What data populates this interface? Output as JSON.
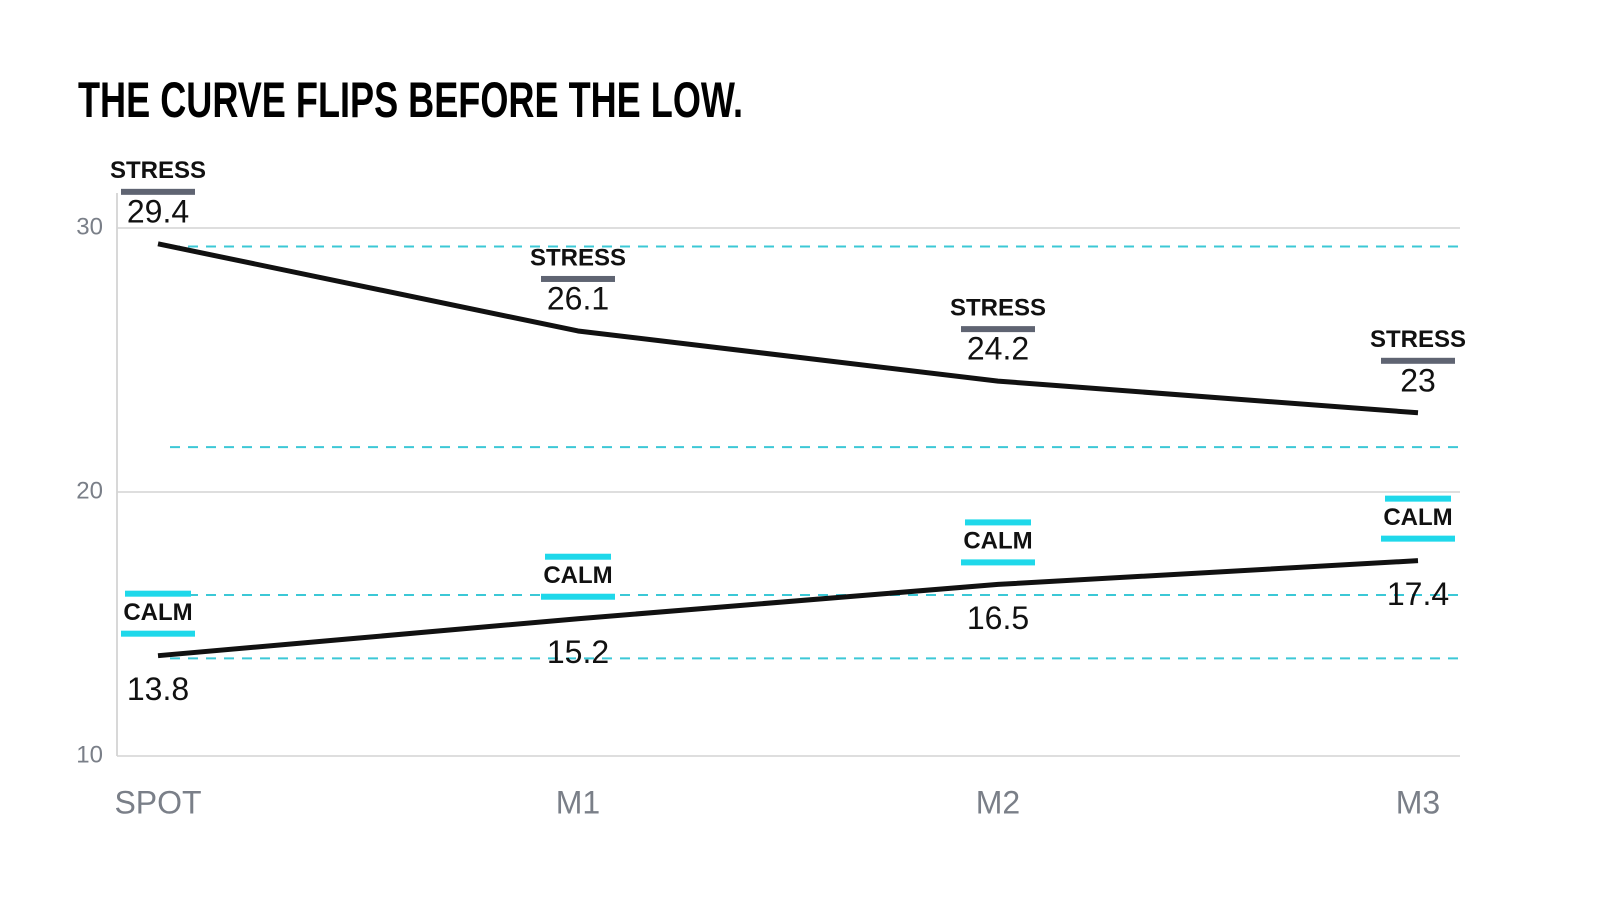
{
  "chart_data": {
    "type": "line",
    "title": "THE CURVE FLIPS BEFORE THE LOW.",
    "categories": [
      "SPOT",
      "M1",
      "M2",
      "M3"
    ],
    "series": [
      {
        "name": "STRESS",
        "color": "#111111",
        "tag_color": "#5f6472",
        "values": [
          29.4,
          26.1,
          24.2,
          23.0
        ]
      },
      {
        "name": "CALM",
        "color": "#111111",
        "tag_color": "#1fd8ea",
        "values": [
          13.8,
          15.2,
          16.5,
          17.4
        ]
      }
    ],
    "reference_lines": {
      "color": "#3cc8d6",
      "values": [
        29.3,
        21.7,
        16.1,
        13.7
      ]
    },
    "ylim": [
      10,
      30
    ],
    "yticks": [
      10,
      20,
      30
    ],
    "grid": true
  }
}
